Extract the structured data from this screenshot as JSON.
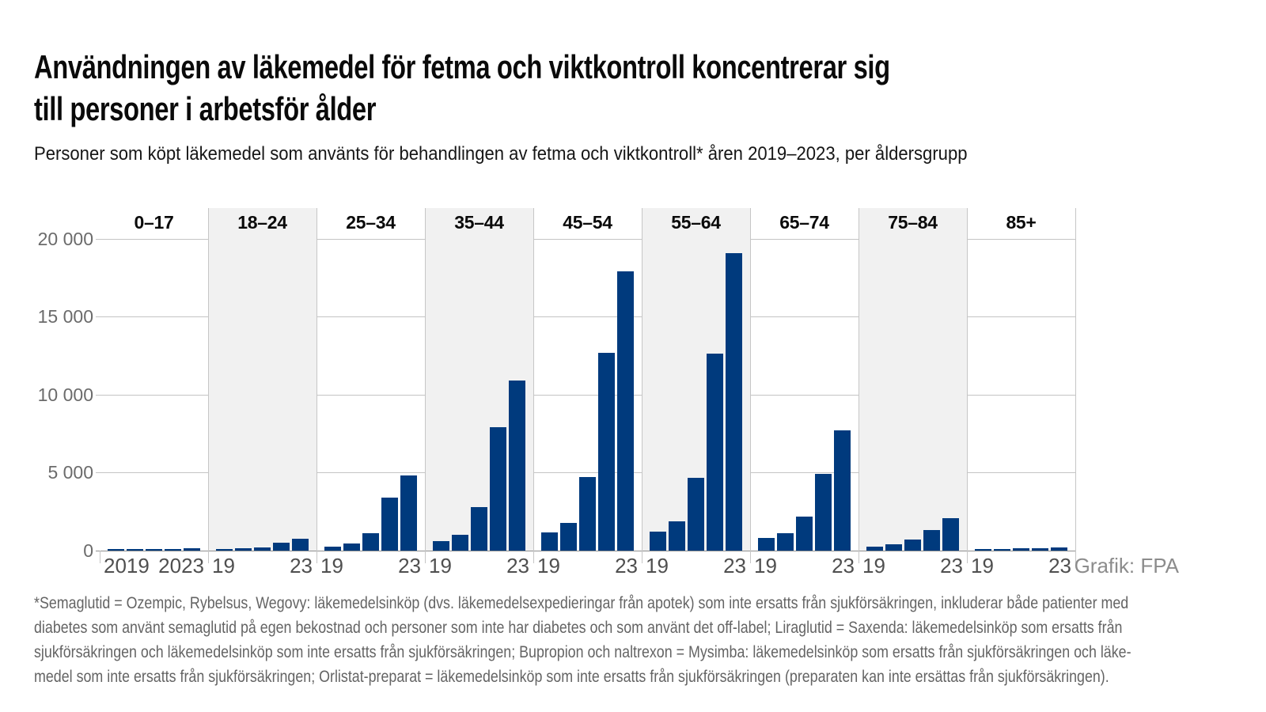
{
  "header": {
    "title_line1": "Användningen av läkemedel för fetma och viktkontroll koncentrerar sig",
    "title_line2": "till personer i arbetsför ålder",
    "subtitle": "Personer som köpt läkemedel som använts för behandlingen av fetma och viktkontroll* åren 2019–2023, per åldersgrupp"
  },
  "chart_data": {
    "type": "bar",
    "title": "Användningen av läkemedel för fetma och viktkontroll koncentrerar sig till personer i arbetsför ålder",
    "categories": [
      "0–17",
      "18–24",
      "25–34",
      "35–44",
      "45–54",
      "55–64",
      "65–74",
      "75–84",
      "85+"
    ],
    "x": [
      "2019",
      "2020",
      "2021",
      "2022",
      "2023"
    ],
    "series": [
      {
        "name": "0–17",
        "values": [
          20,
          30,
          50,
          110,
          140
        ]
      },
      {
        "name": "18–24",
        "values": [
          100,
          130,
          210,
          500,
          740
        ]
      },
      {
        "name": "25–34",
        "values": [
          250,
          450,
          1100,
          3400,
          4800
        ]
      },
      {
        "name": "35–44",
        "values": [
          600,
          1000,
          2800,
          7900,
          10900
        ]
      },
      {
        "name": "45–54",
        "values": [
          1150,
          1800,
          4700,
          12700,
          17900
        ]
      },
      {
        "name": "55–64",
        "values": [
          1200,
          1900,
          4650,
          12650,
          19100
        ]
      },
      {
        "name": "65–74",
        "values": [
          800,
          1100,
          2200,
          4900,
          7700
        ]
      },
      {
        "name": "75–84",
        "values": [
          250,
          400,
          700,
          1300,
          2100
        ]
      },
      {
        "name": "85+",
        "values": [
          80,
          100,
          130,
          160,
          190
        ]
      }
    ],
    "ylim": [
      0,
      20000
    ],
    "ytick_labels": [
      "20 000",
      "15 000",
      "10 000",
      "5 000",
      "0"
    ],
    "grid": true,
    "legend_position": "none",
    "bar_color": "#003a7d",
    "band_color": "#f1f1f1",
    "xtick_first_group": [
      "2019",
      "2023"
    ],
    "xtick_other_groups": [
      "19",
      "23"
    ]
  },
  "credit": "Grafik: FPA",
  "footnote": {
    "lines": [
      "*Semaglutid = Ozempic, Rybelsus, Wegovy: läkemedelsinköp (dvs. läkemedelsexpedieringar från apotek) som inte ersatts från sjukförsäkringen, inkluderar både patienter med",
      "diabetes som använt semaglutid på egen bekostnad och personer som inte har diabetes och som använt det off-label; Liraglutid = Saxenda: läkemedelsinköp som ersatts från",
      "sjukförsäkringen och läkemedelsinköp som inte ersatts från sjukförsäkringen; Bupropion och naltrexon = Mysimba: läkemedelsinköp som ersatts från sjukförsäkringen och läke-",
      "medel som inte ersatts från sjukförsäkringen; Orlistat-preparat = läkemedelsinköp som inte ersatts från sjukförsäkringen (preparaten kan inte ersättas från sjukförsäkringen)."
    ]
  }
}
